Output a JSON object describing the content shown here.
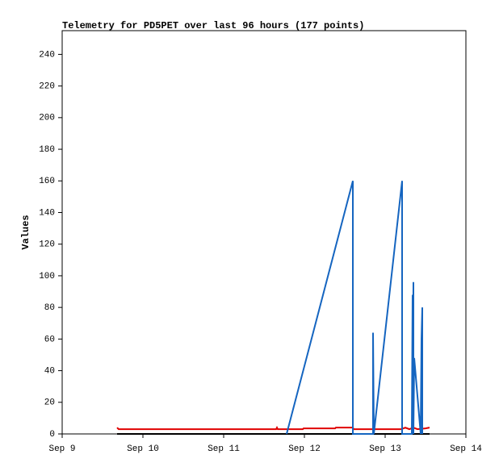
{
  "chart_data": {
    "type": "line",
    "title": "Telemetry for PD5PET over last 96 hours (177 points)",
    "y_label": "Values",
    "xlim": [
      9,
      14
    ],
    "xticks": [
      {
        "value": 9,
        "label": "Sep 9"
      },
      {
        "value": 10,
        "label": "Sep 10"
      },
      {
        "value": 11,
        "label": "Sep 11"
      },
      {
        "value": 12,
        "label": "Sep 12"
      },
      {
        "value": 13,
        "label": "Sep 13"
      },
      {
        "value": 14,
        "label": "Sep 14"
      }
    ],
    "ylim": [
      0,
      255
    ],
    "yticks": [
      0,
      20,
      40,
      60,
      80,
      100,
      120,
      140,
      160,
      180,
      200,
      220,
      240
    ],
    "grid": false,
    "series": [
      {
        "color": "#000000",
        "x": [
          9.68,
          13.55
        ],
        "values": [
          0,
          0
        ]
      },
      {
        "color": "#e00000",
        "x": [
          9.68,
          9.7,
          11.65,
          11.66,
          11.67,
          11.98,
          11.99,
          12.38,
          12.39,
          12.6,
          12.61,
          13.2,
          13.25,
          13.3,
          13.35,
          13.4,
          13.5,
          13.55
        ],
        "values": [
          4,
          3,
          3,
          4,
          3,
          3,
          3.5,
          3.5,
          4,
          4,
          3,
          3,
          4,
          3,
          4,
          3,
          3.5,
          4
        ]
      },
      {
        "color": "#1565c0",
        "x": [
          11.78,
          12.6,
          12.6,
          12.85,
          12.85,
          12.86,
          13.21,
          13.21,
          13.33,
          13.34,
          13.34,
          13.35,
          13.35,
          13.36,
          13.44,
          13.45,
          13.46,
          13.46
        ],
        "values": [
          0,
          160,
          0,
          0,
          64,
          0,
          160,
          0,
          0,
          88,
          0,
          96,
          0,
          48,
          0,
          60,
          80,
          0
        ]
      }
    ]
  }
}
